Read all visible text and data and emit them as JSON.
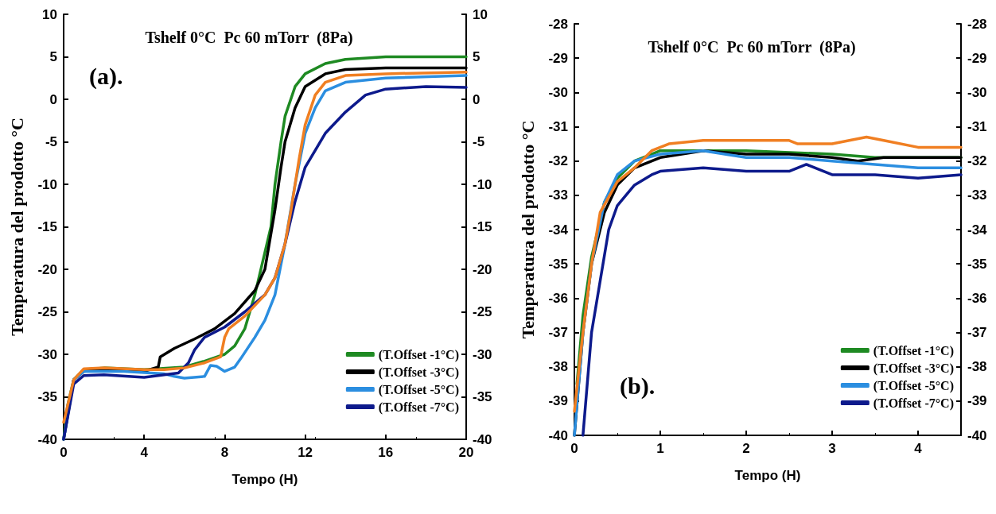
{
  "chart_data": [
    {
      "type": "line",
      "title": "Tshelf 0°C  Pc 60 mTorr  (8Pa)",
      "xlabel": "Tempo (H)",
      "ylabel": "Temperatura del prodotto °C",
      "annotations": [
        "(a)."
      ],
      "xlim": [
        0,
        20
      ],
      "xticks": [
        0,
        4,
        8,
        12,
        16,
        20
      ],
      "ylim": [
        -40,
        10
      ],
      "yticks": [
        -40,
        -35,
        -30,
        -25,
        -20,
        -15,
        -10,
        -5,
        0,
        5,
        10
      ],
      "y2lim": [
        -40,
        10
      ],
      "y2ticks": [
        -40,
        -35,
        -30,
        -25,
        -20,
        -15,
        -10,
        -5,
        0,
        5,
        10
      ],
      "grid": false,
      "legend": "bottom right",
      "marker": "none",
      "line_style": "solid",
      "series": [
        {
          "name": "(T.Offset -1°C)",
          "color": "#1e8a22",
          "x": [
            0,
            0.2,
            0.5,
            1,
            2,
            4,
            6,
            7,
            8,
            8.5,
            9,
            9.5,
            10,
            10.3,
            10.5,
            10.8,
            11,
            11.5,
            12,
            13,
            14,
            16,
            20
          ],
          "values": [
            -40,
            -36,
            -33,
            -31.8,
            -31.6,
            -31.8,
            -31.5,
            -30.8,
            -30,
            -29,
            -27,
            -23,
            -18,
            -15,
            -10,
            -5,
            -2,
            1.5,
            3,
            4.2,
            4.7,
            5,
            5
          ]
        },
        {
          "name": "(T.Offset -3°C)",
          "color": "#000000",
          "x": [
            0,
            0.5,
            1,
            2,
            4,
            4.7,
            4.8,
            5.5,
            6.5,
            7.5,
            8.5,
            9.5,
            10,
            10.5,
            10.8,
            11,
            11.5,
            12,
            13,
            14,
            16,
            20
          ],
          "values": [
            -40,
            -33,
            -32,
            -31.8,
            -32,
            -31.5,
            -30.3,
            -29.3,
            -28.2,
            -27,
            -25.2,
            -22.5,
            -20,
            -13,
            -8,
            -5,
            -1,
            1.5,
            3,
            3.5,
            3.7,
            3.7
          ]
        },
        {
          "name": "(T.Offset -5°C)",
          "color": "#2b8ee0",
          "x": [
            0,
            0.5,
            1,
            3,
            5,
            5.5,
            6,
            7,
            7.3,
            7.6,
            8,
            8.5,
            8.8,
            9.5,
            10,
            10.5,
            11,
            11.5,
            12,
            12.5,
            13,
            14,
            16,
            20
          ],
          "values": [
            -40,
            -33,
            -32,
            -32,
            -32.3,
            -32.6,
            -32.8,
            -32.6,
            -31.3,
            -31.4,
            -32,
            -31.5,
            -30.5,
            -28,
            -26,
            -23,
            -17,
            -10,
            -4,
            -1,
            1,
            2,
            2.5,
            2.8
          ]
        },
        {
          "name": "(T.Offset -7°C)",
          "color": "#0d1a8c",
          "x": [
            0,
            0.5,
            1,
            2,
            4,
            5,
            5.7,
            6.2,
            6.5,
            7,
            8,
            9,
            10,
            10.5,
            11,
            11.5,
            12,
            13,
            14,
            15,
            16,
            18,
            20
          ],
          "values": [
            -40,
            -33.5,
            -32.5,
            -32.4,
            -32.7,
            -32.4,
            -32.2,
            -31,
            -29.5,
            -28,
            -26.8,
            -25,
            -23,
            -21,
            -17,
            -12,
            -8,
            -4,
            -1.5,
            0.5,
            1.2,
            1.5,
            1.4
          ]
        },
        {
          "color": "#f07f22",
          "x": [
            0,
            0.5,
            1,
            2,
            4,
            5,
            6,
            7,
            7.8,
            8,
            8.2,
            9,
            10,
            10.5,
            11,
            11.3,
            11.7,
            12,
            12.5,
            13,
            14,
            16,
            20
          ],
          "values": [
            -38,
            -33,
            -31.7,
            -31.6,
            -31.8,
            -31.8,
            -31.6,
            -31,
            -30.3,
            -28,
            -27,
            -25.5,
            -23,
            -21,
            -17,
            -13,
            -7,
            -3,
            0.5,
            2,
            2.8,
            3,
            3.2
          ]
        }
      ]
    },
    {
      "type": "line",
      "title": "Tshelf 0°C  Pc 60 mTorr  (8Pa)",
      "xlabel": "Tempo (H)",
      "ylabel": "Temperatura del prodotto °C",
      "annotations": [
        "(b)."
      ],
      "xlim": [
        0,
        4.5
      ],
      "xticks": [
        0,
        1,
        2,
        3,
        4
      ],
      "ylim": [
        -40,
        -28
      ],
      "yticks": [
        -40,
        -39,
        -38,
        -37,
        -36,
        -35,
        -34,
        -33,
        -32,
        -31,
        -30,
        -29,
        -28
      ],
      "y2lim": [
        -40,
        -28
      ],
      "y2ticks": [
        -40,
        -39,
        -38,
        -37,
        -36,
        -35,
        -34,
        -33,
        -32,
        -31,
        -30,
        -29,
        -28
      ],
      "grid": false,
      "legend": "bottom right",
      "marker": "none",
      "line_style": "solid",
      "series": [
        {
          "name": "(T.Offset -1°C)",
          "color": "#1e8a22",
          "x": [
            0.03,
            0.1,
            0.2,
            0.35,
            0.5,
            0.7,
            0.9,
            1,
            2,
            3,
            3.5,
            4,
            4.5
          ],
          "values": [
            -38.5,
            -36.5,
            -34.8,
            -33.2,
            -32.5,
            -32,
            -31.8,
            -31.7,
            -31.7,
            -31.8,
            -31.9,
            -31.9,
            -31.9
          ]
        },
        {
          "name": "(T.Offset -3°C)",
          "color": "#000000",
          "x": [
            0,
            0.1,
            0.2,
            0.35,
            0.5,
            0.7,
            1,
            1.5,
            2,
            2.5,
            3,
            3.3,
            3.6,
            4,
            4.5
          ],
          "values": [
            -40,
            -37,
            -35,
            -33.5,
            -32.7,
            -32.2,
            -31.9,
            -31.7,
            -31.8,
            -31.8,
            -31.9,
            -32,
            -31.9,
            -31.9,
            -31.9
          ]
        },
        {
          "name": "(T.Offset -5°C)",
          "color": "#2b8ee0",
          "x": [
            0,
            0.1,
            0.2,
            0.35,
            0.5,
            0.7,
            1,
            1.5,
            2,
            2.5,
            3,
            3.5,
            4,
            4.5
          ],
          "values": [
            -40,
            -37,
            -35,
            -33.2,
            -32.4,
            -32,
            -31.8,
            -31.7,
            -31.9,
            -31.9,
            -32,
            -32.1,
            -32.2,
            -32.2
          ]
        },
        {
          "name": "(T.Offset -7°C)",
          "color": "#0d1a8c",
          "x": [
            0.1,
            0.2,
            0.3,
            0.4,
            0.5,
            0.7,
            0.9,
            1,
            1.5,
            2,
            2.5,
            2.7,
            3,
            3.5,
            4,
            4.5
          ],
          "values": [
            -40,
            -37,
            -35.5,
            -34,
            -33.3,
            -32.7,
            -32.4,
            -32.3,
            -32.2,
            -32.3,
            -32.3,
            -32.1,
            -32.4,
            -32.4,
            -32.5,
            -32.4
          ]
        },
        {
          "color": "#f07f22",
          "x": [
            0,
            0.1,
            0.2,
            0.3,
            0.5,
            0.7,
            0.9,
            1.1,
            1.5,
            2.5,
            2.6,
            3,
            3.4,
            3.6,
            4,
            4.5
          ],
          "values": [
            -39.3,
            -37,
            -35,
            -33.5,
            -32.6,
            -32.2,
            -31.7,
            -31.5,
            -31.4,
            -31.4,
            -31.5,
            -31.5,
            -31.3,
            -31.4,
            -31.6,
            -31.6
          ]
        }
      ]
    }
  ]
}
